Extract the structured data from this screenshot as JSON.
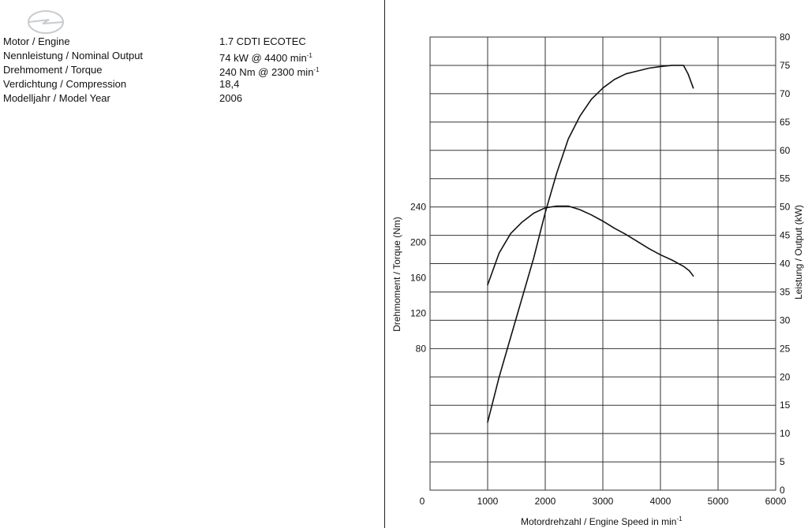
{
  "specs": {
    "rows": [
      {
        "label": "Motor / Engine",
        "value": "1.7 CDTI ECOTEC",
        "unit": ""
      },
      {
        "label": "Nennleistung / Nominal Output",
        "value": "74 kW   @ 4400 min",
        "unit": "-1"
      },
      {
        "label": "Drehmoment / Torque",
        "value": "240 Nm   @ 2300 min",
        "unit": "-1"
      },
      {
        "label": "Verdichtung / Compression",
        "value": "18,4",
        "unit": ""
      },
      {
        "label": "Modelljahr / Model Year",
        "value": "2006",
        "unit": ""
      }
    ]
  },
  "colors": {
    "line": "#111111",
    "grid": "#333333",
    "background": "#ffffff"
  },
  "icons": {
    "logo": "opel-blitz-logo"
  },
  "chart_data": {
    "type": "line",
    "title": "",
    "xlabel": "Motordrehzahl / Engine Speed in min",
    "xlabel_sup": "-1",
    "ylabel_left": "Drehmoment / Torque (Nm)",
    "ylabel_right": "Leistung / Output (kW)",
    "xlim": [
      0,
      6000
    ],
    "x_ticks": [
      0,
      1000,
      2000,
      3000,
      4000,
      5000,
      6000
    ],
    "left_ticks": [
      80,
      120,
      160,
      200,
      240
    ],
    "right_ylim": [
      0,
      80
    ],
    "right_ticks": [
      0,
      5,
      10,
      15,
      20,
      25,
      30,
      35,
      40,
      45,
      50,
      55,
      60,
      65,
      70,
      75,
      80
    ],
    "grid": true,
    "series": [
      {
        "axis": "left",
        "x": [
          1000,
          1200,
          1400,
          1600,
          1800,
          2000,
          2200,
          2300,
          2400,
          2600,
          2800,
          3000,
          3200,
          3400,
          3600,
          3800,
          4000,
          4200,
          4400,
          4500,
          4570
        ],
        "y": [
          152,
          188,
          210,
          223,
          233,
          239,
          241,
          241,
          241,
          237,
          231,
          224,
          216,
          209,
          201,
          193,
          186,
          180,
          173,
          168,
          162
        ]
      },
      {
        "axis": "right",
        "x": [
          1000,
          1200,
          1400,
          1600,
          1800,
          2000,
          2200,
          2400,
          2600,
          2800,
          3000,
          3200,
          3400,
          3600,
          3800,
          4000,
          4200,
          4400,
          4480,
          4570
        ],
        "y": [
          12,
          20,
          27,
          34,
          41,
          49,
          56,
          62,
          66,
          69,
          71,
          72.5,
          73.5,
          74,
          74.5,
          74.8,
          75,
          75,
          73.5,
          71
        ]
      }
    ]
  }
}
